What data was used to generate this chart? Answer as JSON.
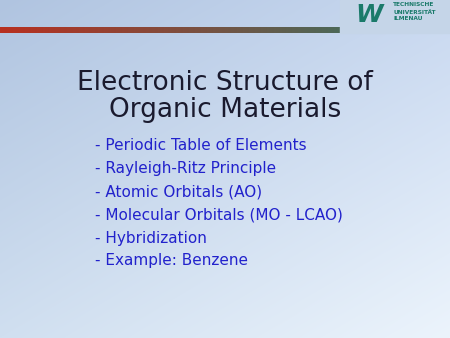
{
  "title_line1": "Electronic Structure of",
  "title_line2": "Organic Materials",
  "title_color": "#1a1a2e",
  "title_fontsize": 19,
  "bullet_items": [
    "- Periodic Table of Elements",
    "- Rayleigh-Ritz Principle",
    "- Atomic Orbitals (AO)",
    "- Molecular Orbitals (MO - LCAO)",
    "- Hybridization",
    "- Example: Benzene"
  ],
  "bullet_color": "#2222cc",
  "bullet_fontsize": 11,
  "bg_color_topleft": "#b0c4e0",
  "bg_color_topright": "#c8d8f0",
  "bg_color_bottomleft": "#d0dff0",
  "bg_color_bottomright": "#e8f0f8",
  "header_stripe_teal": "#2a7a6a",
  "header_stripe_red": "#b83020",
  "logo_box_color": "#c5d5e8",
  "logo_text_color": "#1a7a6a",
  "logo_text": "TECHNISCHE\nUNIVERSITÄT\nILMENAU"
}
